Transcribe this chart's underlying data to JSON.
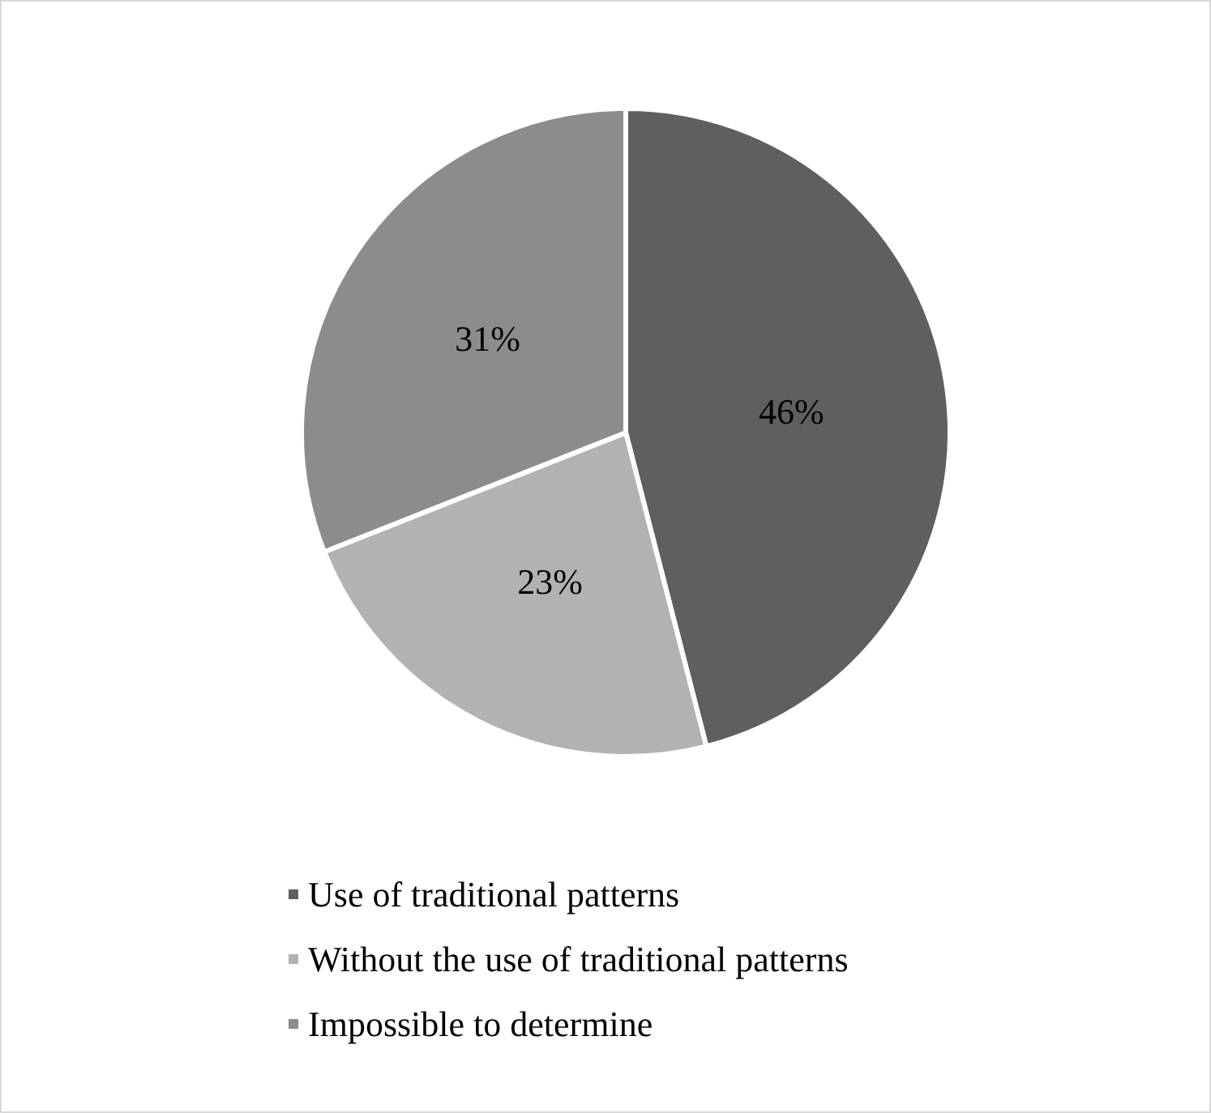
{
  "chart_data": {
    "type": "pie",
    "categories": [
      "Use of traditional patterns",
      "Without the use of traditional patterns",
      "Impossible to determine"
    ],
    "values": [
      46,
      23,
      31
    ],
    "value_labels": [
      "46%",
      "23%",
      "31%"
    ],
    "colors": [
      "#5f5f5f",
      "#b2b2b2",
      "#8c8c8c"
    ],
    "legend": "bottom"
  }
}
